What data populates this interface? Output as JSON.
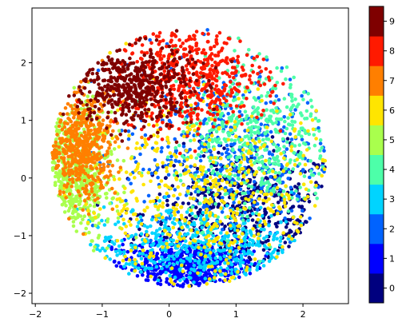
{
  "chart_data": {
    "type": "scatter",
    "title": "",
    "xlabel": "",
    "ylabel": "",
    "xlim": [
      -2.05,
      2.68
    ],
    "ylim": [
      -2.18,
      2.95
    ],
    "x_ticks": [
      -2,
      -1,
      0,
      1,
      2
    ],
    "y_ticks": [
      -2,
      -1,
      0,
      1,
      2
    ],
    "grid": false,
    "legend": "none",
    "colorbar": {
      "placement": "right",
      "ticks": [
        0,
        1,
        2,
        3,
        4,
        5,
        6,
        7,
        8,
        9
      ],
      "colormap": "jet",
      "range": [
        -0.5,
        9.5
      ]
    },
    "classes": [
      {
        "label": 0,
        "color": "#00007f",
        "center": [
          1.1,
          -0.6
        ],
        "spread": [
          0.75,
          0.55
        ]
      },
      {
        "label": 1,
        "color": "#0000ff",
        "center": [
          0.25,
          -1.55
        ],
        "spread": [
          0.55,
          0.25
        ]
      },
      {
        "label": 2,
        "color": "#0063ff",
        "center": [
          0.9,
          0.4
        ],
        "spread": [
          0.8,
          0.8
        ]
      },
      {
        "label": 3,
        "color": "#00d4ff",
        "center": [
          0.4,
          -1.2
        ],
        "spread": [
          0.9,
          0.35
        ]
      },
      {
        "label": 4,
        "color": "#4dffa9",
        "center": [
          1.3,
          0.7
        ],
        "spread": [
          0.6,
          0.7
        ]
      },
      {
        "label": 5,
        "color": "#a9ff4d",
        "center": [
          -1.45,
          0.0
        ],
        "spread": [
          0.3,
          0.6
        ]
      },
      {
        "label": 6,
        "color": "#ffe500",
        "center": [
          0.6,
          -0.4
        ],
        "spread": [
          1.0,
          0.9
        ]
      },
      {
        "label": 7,
        "color": "#ff7f00",
        "center": [
          -1.3,
          0.55
        ],
        "spread": [
          0.25,
          0.45
        ]
      },
      {
        "label": 8,
        "color": "#ff1a00",
        "center": [
          0.35,
          1.75
        ],
        "spread": [
          0.55,
          0.45
        ]
      },
      {
        "label": 9,
        "color": "#7f0000",
        "center": [
          -0.55,
          1.6
        ],
        "spread": [
          0.45,
          0.35
        ]
      }
    ]
  }
}
